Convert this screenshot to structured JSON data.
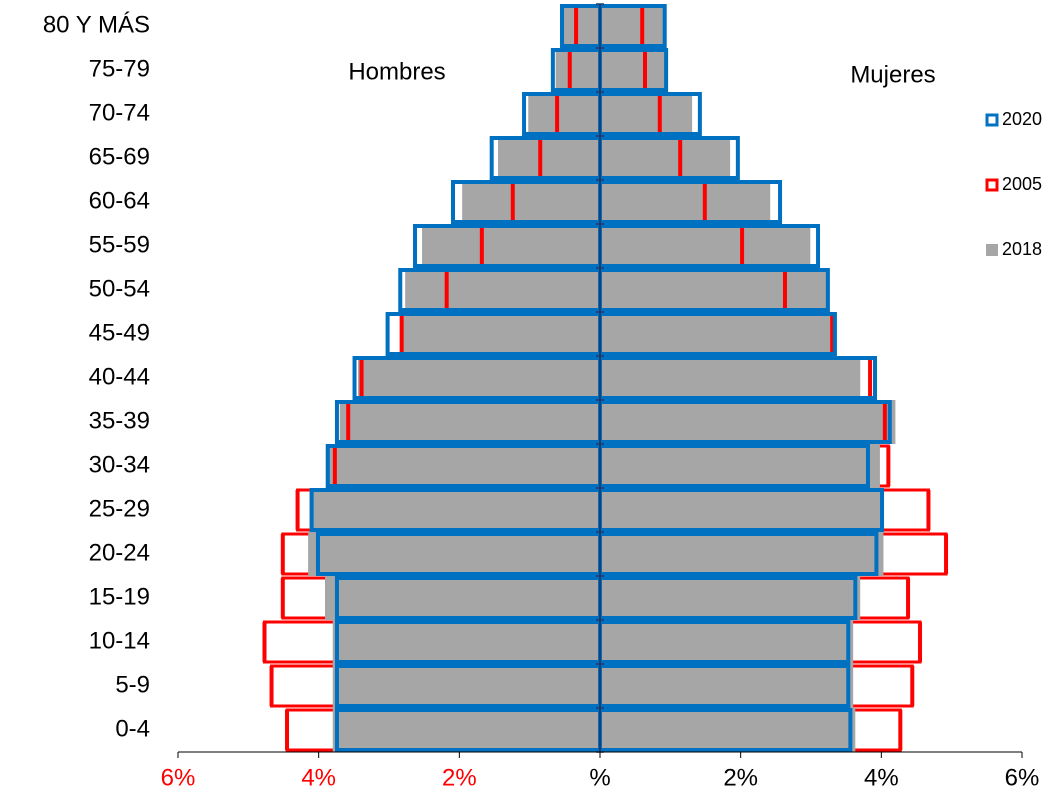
{
  "chart_data": {
    "type": "pyramid",
    "left_title": "Hombres",
    "right_title": "Mujeres",
    "categories": [
      "0-4",
      "5-9",
      "10-14",
      "15-19",
      "20-24",
      "25-29",
      "30-34",
      "35-39",
      "40-44",
      "45-49",
      "50-54",
      "55-59",
      "60-64",
      "65-69",
      "70-74",
      "75-79",
      "80 Y MÁS"
    ],
    "series": [
      {
        "name": "2005",
        "color": "#ff0000",
        "style": "outline",
        "men": [
          4.45,
          4.67,
          4.77,
          4.51,
          4.51,
          4.3,
          3.77,
          3.58,
          3.39,
          2.82,
          2.18,
          1.68,
          1.24,
          0.85,
          0.61,
          0.43,
          0.34
        ],
        "women": [
          4.27,
          4.44,
          4.55,
          4.38,
          4.92,
          4.67,
          4.1,
          4.05,
          3.84,
          3.3,
          2.63,
          2.02,
          1.49,
          1.14,
          0.85,
          0.64,
          0.6
        ]
      },
      {
        "name": "2018",
        "color": "#a6a6a6",
        "style": "fill",
        "men": [
          3.8,
          3.8,
          3.8,
          3.91,
          4.15,
          4.13,
          3.9,
          3.7,
          3.44,
          2.84,
          2.77,
          2.53,
          1.96,
          1.45,
          1.02,
          0.63,
          0.54
        ],
        "women": [
          3.63,
          3.6,
          3.6,
          3.7,
          4.03,
          4.01,
          3.98,
          4.2,
          3.7,
          3.27,
          3.24,
          2.99,
          2.42,
          1.85,
          1.31,
          0.92,
          0.9
        ]
      },
      {
        "name": "2020",
        "color": "#0070c0",
        "style": "outline",
        "men": [
          3.74,
          3.74,
          3.74,
          3.74,
          4.01,
          4.1,
          3.87,
          3.74,
          3.49,
          3.02,
          2.84,
          2.63,
          2.09,
          1.54,
          1.08,
          0.67,
          0.54
        ],
        "women": [
          3.56,
          3.53,
          3.53,
          3.63,
          3.93,
          4.01,
          3.81,
          4.12,
          3.91,
          3.34,
          3.24,
          3.1,
          2.56,
          1.96,
          1.42,
          0.94,
          0.92
        ]
      }
    ],
    "legend_order": [
      2,
      0,
      1
    ],
    "xlim": [
      -6,
      6
    ],
    "xticks": [
      {
        "value": -6,
        "label": "6%"
      },
      {
        "value": -4,
        "label": "4%"
      },
      {
        "value": -2,
        "label": "2%"
      },
      {
        "value": 0,
        "label": "%"
      },
      {
        "value": 2,
        "label": "2%"
      },
      {
        "value": 4,
        "label": "4%"
      },
      {
        "value": 6,
        "label": "6%"
      }
    ],
    "negative_tick_color": "#ff0000"
  }
}
